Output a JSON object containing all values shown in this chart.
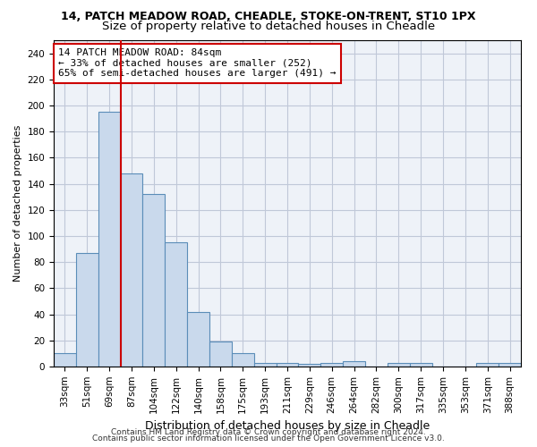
{
  "title1": "14, PATCH MEADOW ROAD, CHEADLE, STOKE-ON-TRENT, ST10 1PX",
  "title2": "Size of property relative to detached houses in Cheadle",
  "xlabel": "Distribution of detached houses by size in Cheadle",
  "ylabel": "Number of detached properties",
  "categories": [
    "33sqm",
    "51sqm",
    "69sqm",
    "87sqm",
    "104sqm",
    "122sqm",
    "140sqm",
    "158sqm",
    "175sqm",
    "193sqm",
    "211sqm",
    "229sqm",
    "246sqm",
    "264sqm",
    "282sqm",
    "300sqm",
    "317sqm",
    "335sqm",
    "353sqm",
    "371sqm",
    "388sqm"
  ],
  "values": [
    10,
    87,
    195,
    148,
    132,
    95,
    42,
    19,
    10,
    3,
    3,
    2,
    3,
    4,
    0,
    3,
    3,
    0,
    0,
    3,
    3
  ],
  "bar_color": "#c9d9ec",
  "bar_edge_color": "#5b8db8",
  "vline_color": "#cc0000",
  "vline_index": 2.5,
  "annotation_line1": "14 PATCH MEADOW ROAD: 84sqm",
  "annotation_line2": "← 33% of detached houses are smaller (252)",
  "annotation_line3": "65% of semi-detached houses are larger (491) →",
  "annotation_box_color": "#ffffff",
  "annotation_box_edge": "#cc0000",
  "ylim": [
    0,
    250
  ],
  "yticks": [
    0,
    20,
    40,
    60,
    80,
    100,
    120,
    140,
    160,
    180,
    200,
    220,
    240
  ],
  "grid_color": "#c0c8d8",
  "background_color": "#eef2f8",
  "footer_line1": "Contains HM Land Registry data © Crown copyright and database right 2024.",
  "footer_line2": "Contains public sector information licensed under the Open Government Licence v3.0.",
  "title1_fontsize": 9,
  "title2_fontsize": 9.5,
  "xlabel_fontsize": 9,
  "ylabel_fontsize": 8,
  "tick_fontsize": 7.5,
  "annotation_fontsize": 8,
  "footer_fontsize": 6.5
}
